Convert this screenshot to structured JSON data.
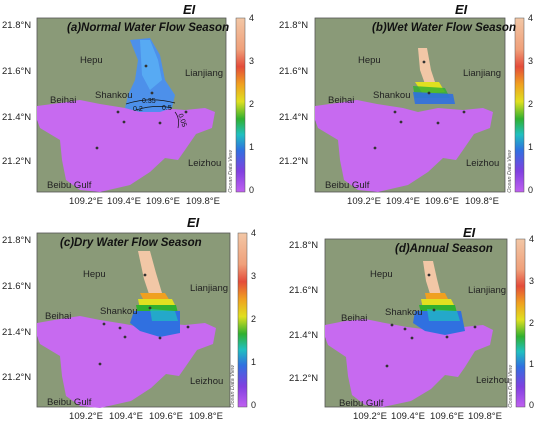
{
  "variable": "EI",
  "colorbar": {
    "ticks": [
      "4",
      "3",
      "2",
      "1",
      "0"
    ],
    "watermark": "Ocean Data View",
    "colors": [
      "#f2c7a6",
      "#f0a07a",
      "#e44c3a",
      "#f0a020",
      "#e0e020",
      "#30b030",
      "#20c0c0",
      "#3070e0",
      "#8040e0",
      "#c060f0"
    ]
  },
  "axes": {
    "y_ticks": [
      "21.8°N",
      "21.6°N",
      "21.4°N",
      "21.2°N"
    ],
    "x_ticks": [
      "109.2°E",
      "109.4°E",
      "109.6°E",
      "109.8°E"
    ]
  },
  "places": {
    "hepu": "Hepu",
    "lianjiang": "Lianjiang",
    "shankou": "Shankou",
    "beihai": "Beihai",
    "leizhou": "Leizhou",
    "beibu": "Beibu Gulf"
  },
  "panels": [
    {
      "key": "a",
      "title": "(a)Normal Water Flow Season",
      "contour_labels": [
        "0.35",
        "0.2",
        "0.5",
        "0.05"
      ]
    },
    {
      "key": "b",
      "title": "(b)Wet Water Flow Season"
    },
    {
      "key": "c",
      "title": "(c)Dry Water Flow Season"
    },
    {
      "key": "d",
      "title": "(d)Annual Season"
    }
  ]
}
